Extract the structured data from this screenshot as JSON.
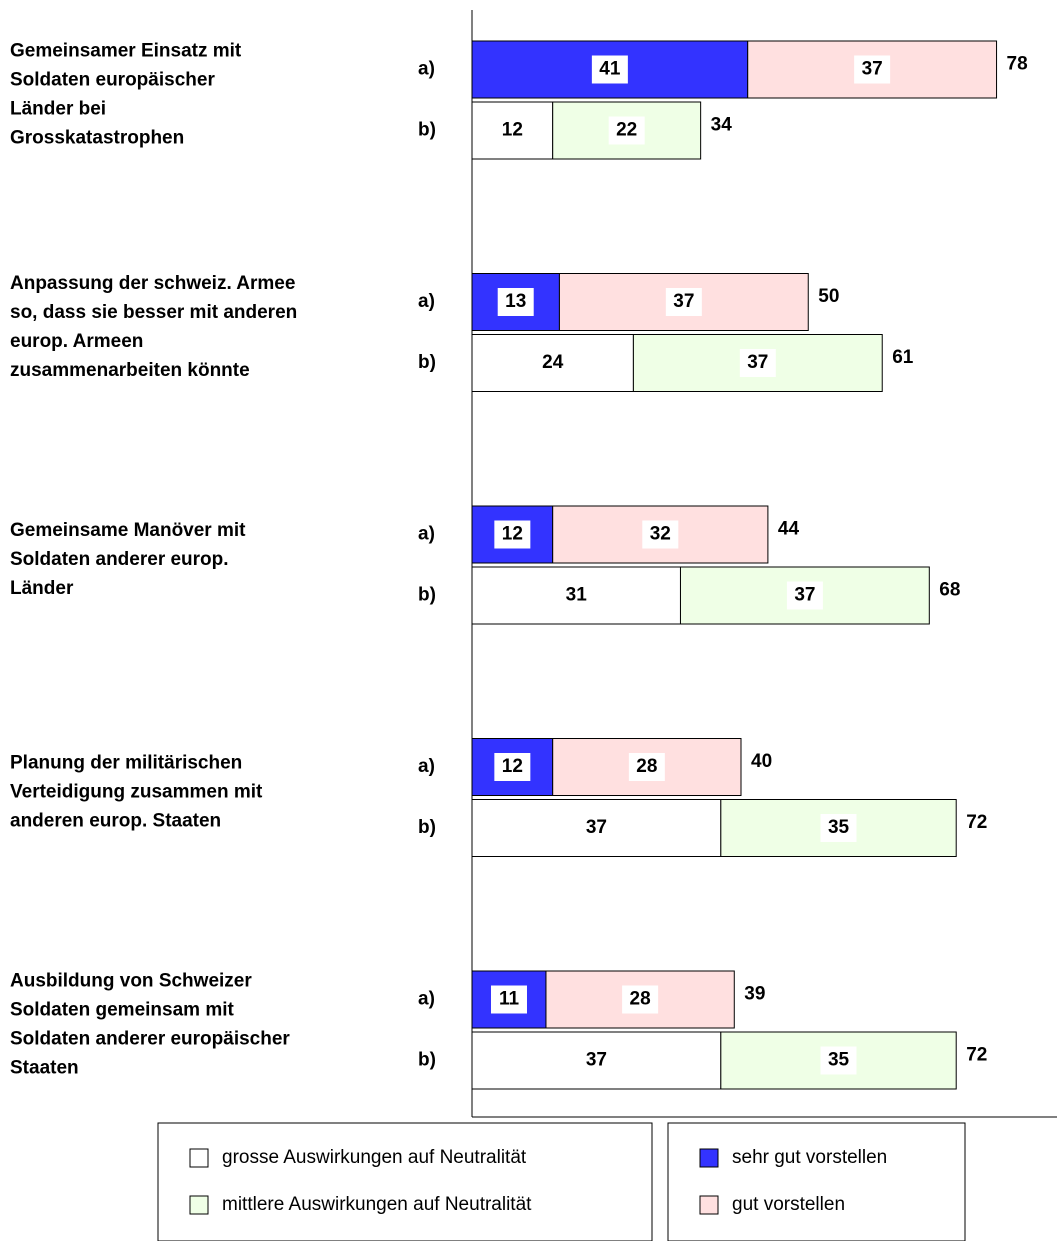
{
  "chart_data": {
    "type": "bar",
    "categories": [
      [
        "Gemeinsamer Einsatz mit",
        "Soldaten europäischer",
        "Länder bei",
        "Grosskatastrophen"
      ],
      [
        "Anpassung der schweiz. Armee",
        "so, dass sie besser mit anderen",
        "europ. Armeen",
        "zusammenarbeiten könnte"
      ],
      [
        "Gemeinsame Manöver mit",
        "Soldaten anderer europ.",
        "Länder"
      ],
      [
        "Planung der militärischen",
        "Verteidigung zusammen mit",
        "anderen europ. Staaten"
      ],
      [
        "Ausbildung von Schweizer",
        "Soldaten gemeinsam mit",
        "Soldaten anderer europäischer",
        "Staaten"
      ]
    ],
    "groups": [
      {
        "label": "a)",
        "series": [
          {
            "name": "sehr gut vorstellen",
            "color": "#3333ff",
            "values": [
              41,
              13,
              12,
              12,
              11
            ]
          },
          {
            "name": "gut vorstellen",
            "color": "#ffe0e0",
            "values": [
              37,
              37,
              32,
              28,
              28
            ]
          }
        ],
        "totals": [
          78,
          50,
          44,
          40,
          39
        ]
      },
      {
        "label": "b)",
        "series": [
          {
            "name": "grosse Auswirkungen auf Neutralität",
            "color": "#ffffff",
            "values": [
              12,
              24,
              31,
              37,
              37
            ]
          },
          {
            "name": "mittlere Auswirkungen auf Neutralität",
            "color": "#efffe6",
            "values": [
              22,
              37,
              37,
              35,
              35
            ]
          }
        ],
        "totals": [
          34,
          61,
          68,
          72,
          72
        ]
      }
    ],
    "xlim": [
      0,
      80
    ]
  }
}
